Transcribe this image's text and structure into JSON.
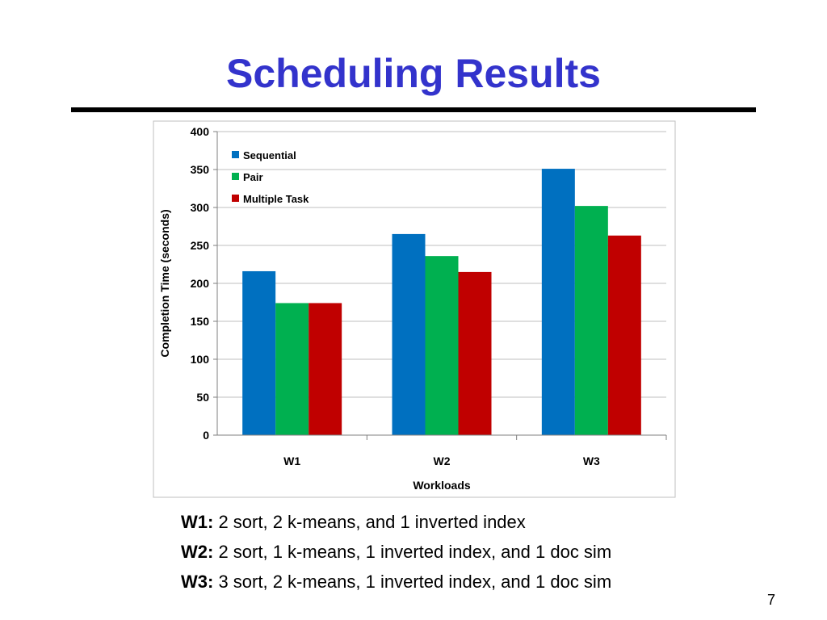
{
  "slide": {
    "title": "Scheduling Results",
    "page_number": "7"
  },
  "captions": [
    {
      "key": "W1:",
      "text": "2 sort, 2 k-means, and 1 inverted index"
    },
    {
      "key": "W2:",
      "text": "2 sort, 1 k-means, 1 inverted index, and 1 doc sim"
    },
    {
      "key": "W3:",
      "text": "3 sort, 2 k-means, 1 inverted index, and 1 doc sim"
    }
  ],
  "chart_data": {
    "type": "bar",
    "title": "",
    "xlabel": "Workloads",
    "ylabel": "Completion Time (seconds)",
    "categories": [
      "W1",
      "W2",
      "W3"
    ],
    "ylim": [
      0,
      400
    ],
    "yticks": [
      0,
      50,
      100,
      150,
      200,
      250,
      300,
      350,
      400
    ],
    "grid": true,
    "legend_position": "top-left",
    "series": [
      {
        "name": "Sequential",
        "color": "#0070c0",
        "values": [
          216,
          265,
          351
        ]
      },
      {
        "name": "Pair",
        "color": "#00b050",
        "values": [
          174,
          236,
          302
        ]
      },
      {
        "name": "Multiple Task",
        "color": "#c00000",
        "values": [
          174,
          215,
          263
        ]
      }
    ]
  }
}
